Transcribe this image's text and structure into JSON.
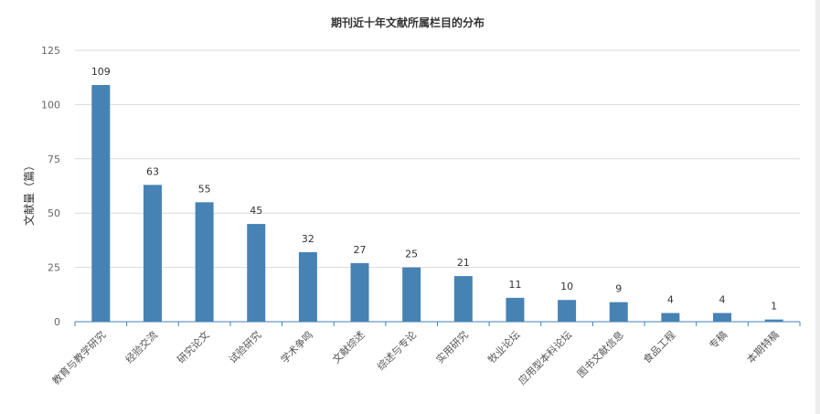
{
  "chart_data": {
    "type": "bar",
    "title": "期刊近十年文献所属栏目的分布",
    "xlabel": "",
    "ylabel": "文献量（篇）",
    "categories": [
      "教育与教学研究",
      "经验交流",
      "研究论文",
      "试验研究",
      "学术争鸣",
      "文献综述",
      "综述与专论",
      "实用研究",
      "牧业论坛",
      "应用型本科论坛",
      "图书文献信息",
      "食品工程",
      "专稿",
      "本期特稿"
    ],
    "values": [
      109,
      63,
      55,
      45,
      32,
      27,
      25,
      21,
      11,
      10,
      9,
      4,
      4,
      1
    ],
    "ylim": [
      0,
      125
    ],
    "yticks": [
      0,
      25,
      50,
      75,
      100,
      125
    ],
    "grid": true,
    "legend": "none",
    "bar_color": "#4682b4"
  }
}
